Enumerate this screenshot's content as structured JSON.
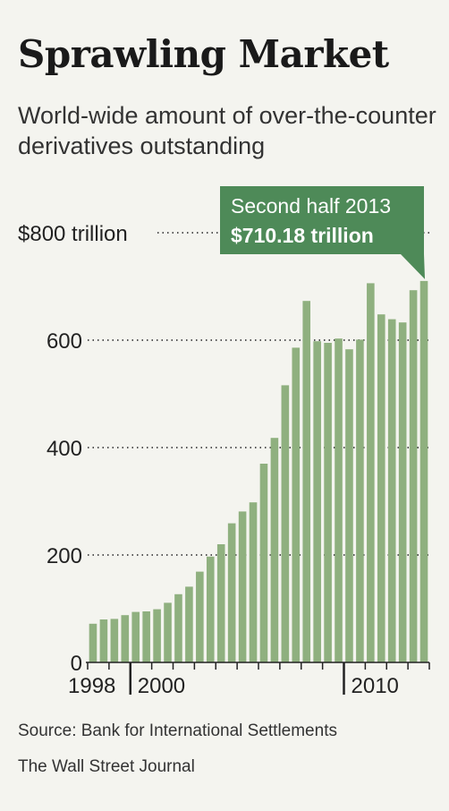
{
  "title": "Sprawling Market",
  "subtitle": "World-wide amount of over-the-counter derivatives outstanding",
  "source": "Source: Bank for International Settlements",
  "credit": "The Wall Street Journal",
  "colors": {
    "bar": "#8fb07f",
    "callout": "#4e8a58",
    "grid": "#555555"
  },
  "chart_data": {
    "type": "bar",
    "title": "Sprawling Market",
    "xlabel": "",
    "ylabel": "",
    "ylim": [
      0,
      800
    ],
    "yticks": [
      {
        "value": 0,
        "label": "0"
      },
      {
        "value": 200,
        "label": "200"
      },
      {
        "value": 400,
        "label": "400"
      },
      {
        "value": 600,
        "label": "600"
      },
      {
        "value": 800,
        "label": "$800 trillion"
      }
    ],
    "xtick_labels": [
      {
        "label": "1998",
        "index": 0
      },
      {
        "label": "2000",
        "index": 4
      },
      {
        "label": "2010",
        "index": 24
      }
    ],
    "grid": true,
    "categories": [
      "1998H1",
      "1998H2",
      "1999H1",
      "1999H2",
      "2000H1",
      "2000H2",
      "2001H1",
      "2001H2",
      "2002H1",
      "2002H2",
      "2003H1",
      "2003H2",
      "2004H1",
      "2004H2",
      "2005H1",
      "2005H2",
      "2006H1",
      "2006H2",
      "2007H1",
      "2007H2",
      "2008H1",
      "2008H2",
      "2009H1",
      "2009H2",
      "2010H1",
      "2010H2",
      "2011H1",
      "2011H2",
      "2012H1",
      "2012H2",
      "2013H1",
      "2013H2"
    ],
    "values": [
      72,
      80,
      81,
      88,
      94,
      95,
      99,
      111,
      127,
      141,
      169,
      197,
      220,
      259,
      281,
      298,
      370,
      418,
      516,
      586,
      673,
      598,
      595,
      603,
      583,
      601,
      706,
      648,
      639,
      633,
      693,
      710.18
    ],
    "annotation": {
      "index": 31,
      "line1": "Second half 2013",
      "line2": "$710.18 trillion"
    }
  }
}
